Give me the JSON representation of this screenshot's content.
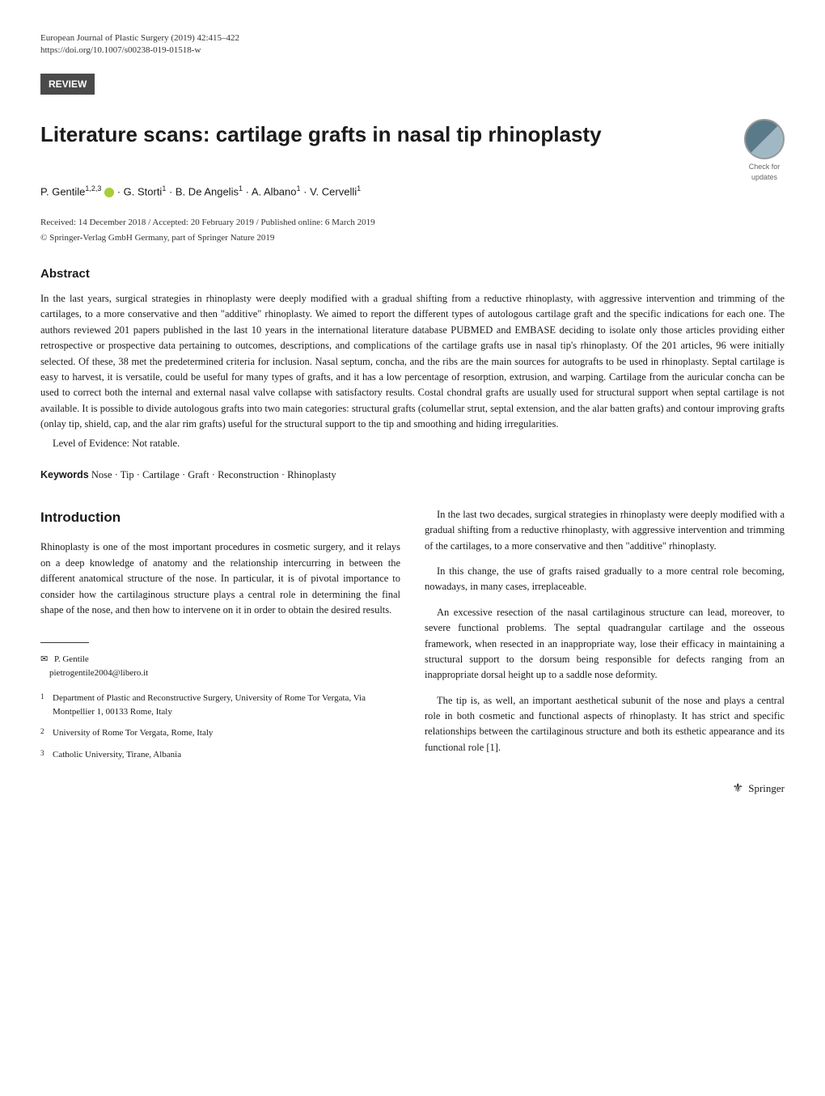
{
  "journal": {
    "citation": "European Journal of Plastic Surgery (2019) 42:415–422",
    "doi": "https://doi.org/10.1007/s00238-019-01518-w"
  },
  "badge": "REVIEW",
  "check_updates": {
    "line1": "Check for",
    "line2": "updates"
  },
  "title": "Literature scans: cartilage grafts in nasal tip rhinoplasty",
  "authors_html": "P. Gentile",
  "author_sup1": "1,2,3",
  "authors_rest": " · G. Storti",
  "author_sup2": "1",
  "authors_rest2": " · B. De Angelis",
  "author_sup3": "1",
  "authors_rest3": " · A. Albano",
  "author_sup4": "1",
  "authors_rest4": " · V. Cervelli",
  "author_sup5": "1",
  "dates": "Received: 14 December 2018 / Accepted: 20 February 2019 / Published online: 6 March 2019",
  "copyright": "© Springer-Verlag GmbH Germany, part of Springer Nature 2019",
  "abstract": {
    "header": "Abstract",
    "text": "In the last years, surgical strategies in rhinoplasty were deeply modified with a gradual shifting from a reductive rhinoplasty, with aggressive intervention and trimming of the cartilages, to a more conservative and then \"additive\" rhinoplasty. We aimed to report the different types of autologous cartilage graft and the specific indications for each one. The authors reviewed 201 papers published in the last 10 years in the international literature database PUBMED and EMBASE deciding to isolate only those articles providing either retrospective or prospective data pertaining to outcomes, descriptions, and complications of the cartilage grafts use in nasal tip's rhinoplasty. Of the 201 articles, 96 were initially selected. Of these, 38 met the predetermined criteria for inclusion. Nasal septum, concha, and the ribs are the main sources for autografts to be used in rhinoplasty. Septal cartilage is easy to harvest, it is versatile, could be useful for many types of grafts, and it has a low percentage of resorption, extrusion, and warping. Cartilage from the auricular concha can be used to correct both the internal and external nasal valve collapse with satisfactory results. Costal chondral grafts are usually used for structural support when septal cartilage is not available. It is possible to divide autologous grafts into two main categories: structural grafts (columellar strut, septal extension, and the alar batten grafts) and contour improving grafts (onlay tip, shield, cap, and the alar rim grafts) useful for the structural support to the tip and smoothing and hiding irregularities.",
    "loe": "Level of Evidence: Not ratable."
  },
  "keywords": {
    "label": "Keywords",
    "text": " Nose · Tip · Cartilage · Graft · Reconstruction · Rhinoplasty"
  },
  "intro": {
    "header": "Introduction",
    "p1": "Rhinoplasty is one of the most important procedures in cosmetic surgery, and it relays on a deep knowledge of anatomy and the relationship intercurring in between the different anatomical structure of the nose. In particular, it is of pivotal importance to consider how the cartilaginous structure plays a central role in determining the final shape of the nose, and then how to intervene on it in order to obtain the desired results."
  },
  "right_col": {
    "p1": "In the last two decades, surgical strategies in rhinoplasty were deeply modified with a gradual shifting from a reductive rhinoplasty, with aggressive intervention and trimming of the cartilages, to a more conservative and then \"additive\" rhinoplasty.",
    "p2": "In this change, the use of grafts raised gradually to a more central role becoming, nowadays, in many cases, irreplaceable.",
    "p3": "An excessive resection of the nasal cartilaginous structure can lead, moreover, to severe functional problems. The septal quadrangular cartilage and the osseous framework, when resected in an inappropriate way, lose their efficacy in maintaining a structural support to the dorsum being responsible for defects ranging from an inappropriate dorsal height up to a saddle nose deformity.",
    "p4": "The tip is, as well, an important aesthetical subunit of the nose and plays a central role in both cosmetic and functional aspects of rhinoplasty. It has strict and specific relationships between the cartilaginous structure and both its esthetic appearance and its functional role [1]."
  },
  "corresp": {
    "name": "P. Gentile",
    "email": "pietrogentile2004@libero.it"
  },
  "affiliations": [
    {
      "num": "1",
      "text": "Department of Plastic and Reconstructive Surgery, University of Rome Tor Vergata, Via Montpellier 1, 00133 Rome, Italy"
    },
    {
      "num": "2",
      "text": "University of Rome Tor Vergata, Rome, Italy"
    },
    {
      "num": "3",
      "text": "Catholic University, Tirane, Albania"
    }
  ],
  "footer": "Springer"
}
